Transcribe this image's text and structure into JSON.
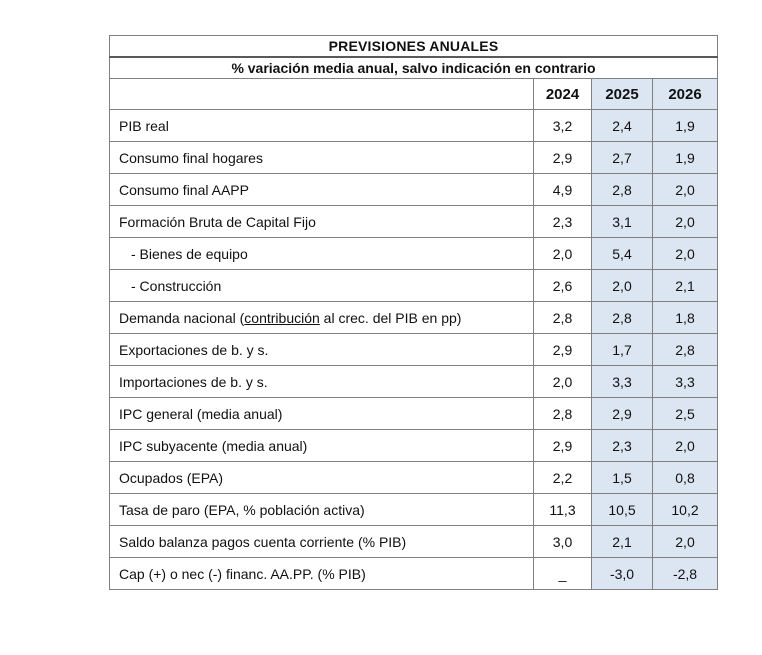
{
  "table": {
    "title": "PREVISIONES ANUALES",
    "subtitle": "% variación media anual, salvo indicación en contrario",
    "columns": [
      "2024",
      "2025",
      "2026"
    ],
    "rows": [
      {
        "parts": [
          {
            "text": "PIB real"
          }
        ],
        "indent": false,
        "values": [
          "3,2",
          "2,4",
          "1,9"
        ]
      },
      {
        "parts": [
          {
            "text": "Consumo final hogares"
          }
        ],
        "indent": false,
        "values": [
          "2,9",
          "2,7",
          "1,9"
        ]
      },
      {
        "parts": [
          {
            "text": "Consumo final AAPP"
          }
        ],
        "indent": false,
        "values": [
          "4,9",
          "2,8",
          "2,0"
        ]
      },
      {
        "parts": [
          {
            "text": "Formación Bruta de Capital Fijo"
          }
        ],
        "indent": false,
        "values": [
          "2,3",
          "3,1",
          "2,0"
        ]
      },
      {
        "parts": [
          {
            "text": "- Bienes de equipo"
          }
        ],
        "indent": true,
        "values": [
          "2,0",
          "5,4",
          "2,0"
        ]
      },
      {
        "parts": [
          {
            "text": "- Construcción"
          }
        ],
        "indent": true,
        "values": [
          "2,6",
          "2,0",
          "2,1"
        ]
      },
      {
        "parts": [
          {
            "text": "Demanda nacional ("
          },
          {
            "text": "contribución",
            "underline": true
          },
          {
            "text": " al crec. del PIB en pp)"
          }
        ],
        "indent": false,
        "values": [
          "2,8",
          "2,8",
          "1,8"
        ]
      },
      {
        "parts": [
          {
            "text": "Exportaciones de b. y s."
          }
        ],
        "indent": false,
        "values": [
          "2,9",
          "1,7",
          "2,8"
        ]
      },
      {
        "parts": [
          {
            "text": "Importaciones de b. y s."
          }
        ],
        "indent": false,
        "values": [
          "2,0",
          "3,3",
          "3,3"
        ]
      },
      {
        "parts": [
          {
            "text": "IPC general (media anual)"
          }
        ],
        "indent": false,
        "values": [
          "2,8",
          "2,9",
          "2,5"
        ]
      },
      {
        "parts": [
          {
            "text": "IPC subyacente (media anual)"
          }
        ],
        "indent": false,
        "values": [
          "2,9",
          "2,3",
          "2,0"
        ]
      },
      {
        "parts": [
          {
            "text": "Ocupados (EPA)"
          }
        ],
        "indent": false,
        "values": [
          "2,2",
          "1,5",
          "0,8"
        ]
      },
      {
        "parts": [
          {
            "text": "Tasa de paro (EPA, % población activa)"
          }
        ],
        "indent": false,
        "values": [
          "11,3",
          "10,5",
          "10,2"
        ]
      },
      {
        "parts": [
          {
            "text": "Saldo balanza pagos cuenta corriente (% PIB)"
          }
        ],
        "indent": false,
        "values": [
          "3,0",
          "2,1",
          "2,0"
        ]
      },
      {
        "parts": [
          {
            "text": "Cap (+) o nec (-) financ. AA.PP. (% PIB)"
          }
        ],
        "indent": false,
        "values": [
          "_",
          "-3,0",
          "-2,8"
        ]
      }
    ],
    "colors": {
      "highlight_blue": "#dce6f2",
      "grid_border": "#808080",
      "title_divider": "#595959",
      "text": "#111111"
    }
  }
}
